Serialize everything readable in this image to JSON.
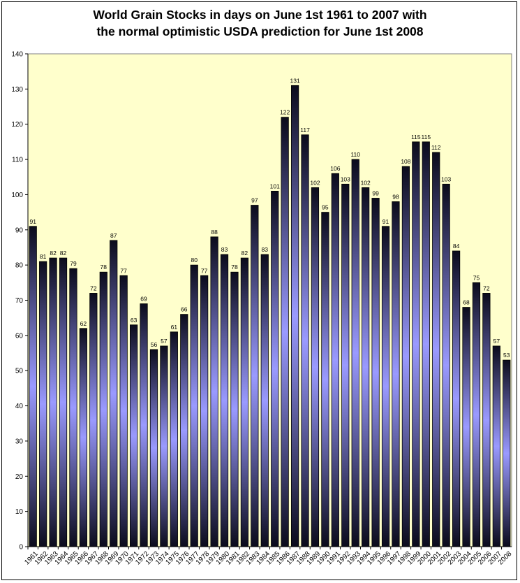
{
  "chart_data": {
    "type": "bar",
    "title_line1": "World Grain Stocks in days on June 1st 1961 to 2007 with",
    "title_line2": "the normal optimistic USDA prediction for June 1st 2008",
    "xlabel": "",
    "ylabel": "",
    "ylim": [
      0,
      140
    ],
    "ytick_step": 10,
    "grid": false,
    "legend": "none",
    "plot_background": "#ffffcc",
    "bar_gradient": [
      "#0b0b1c",
      "#9a9aff",
      "#0b0b1c"
    ],
    "categories": [
      "1961",
      "1962",
      "1963",
      "1964",
      "1965",
      "1966",
      "1967",
      "1968",
      "1969",
      "1970",
      "1971",
      "1972",
      "1973",
      "1974",
      "1975",
      "1976",
      "1977",
      "1978",
      "1979",
      "1980",
      "1981",
      "1982",
      "1983",
      "1984",
      "1985",
      "1986",
      "1987",
      "1988",
      "1989",
      "1990",
      "1991",
      "1992",
      "1993",
      "1994",
      "1995",
      "1996",
      "1997",
      "1998",
      "1999",
      "2000",
      "2001",
      "2002",
      "2003",
      "2004",
      "2005",
      "2006",
      "2007",
      "2008"
    ],
    "values": [
      91,
      81,
      82,
      82,
      79,
      62,
      72,
      78,
      87,
      77,
      63,
      69,
      56,
      57,
      61,
      66,
      80,
      77,
      88,
      83,
      78,
      82,
      97,
      83,
      101,
      122,
      131,
      117,
      102,
      95,
      106,
      103,
      110,
      102,
      99,
      91,
      98,
      108,
      115,
      115,
      112,
      103,
      84,
      68,
      75,
      72,
      57,
      53
    ]
  }
}
